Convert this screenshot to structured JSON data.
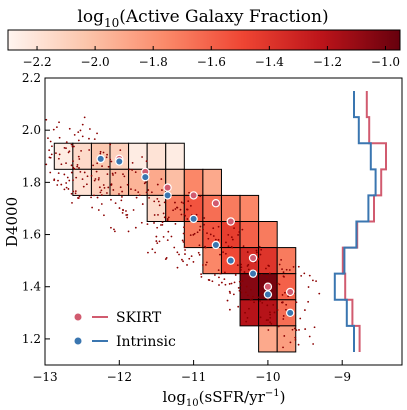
{
  "chart_data": {
    "type": "heatmap",
    "colorbar": {
      "title": "log$_{10}$(Active  Galaxy  Fraction)",
      "title_parts": {
        "prefix": "log",
        "sub": "10",
        "rest": "(Active  Galaxy  Fraction)"
      },
      "range": [
        -2.3,
        -0.95
      ],
      "ticks": [
        -2.2,
        -2.0,
        -1.8,
        -1.6,
        -1.4,
        -1.2,
        -1.0
      ],
      "tick_labels": [
        "−2.2",
        "−2.0",
        "−1.8",
        "−1.6",
        "−1.4",
        "−1.2",
        "−1.0"
      ],
      "colormap": "Reds"
    },
    "xlabel": {
      "prefix": "log",
      "sub": "10",
      "rest": "(sSFR/yr",
      "sup": "−1",
      "close": ")"
    },
    "ylabel": "D4000",
    "xlim": [
      -13,
      -8.2
    ],
    "ylim": [
      1.1,
      2.2
    ],
    "xticks": [
      -13,
      -12,
      -11,
      -10,
      -9
    ],
    "xtick_labels": [
      "−13",
      "−12",
      "−11",
      "−10",
      "−9"
    ],
    "yticks": [
      1.2,
      1.4,
      1.6,
      1.8,
      2.0,
      2.2
    ],
    "ytick_labels": [
      "1.2",
      "1.4",
      "1.6",
      "1.8",
      "2.0",
      "2.2"
    ],
    "bin_size": {
      "x": 0.25,
      "y": 0.1
    },
    "cells": [
      {
        "x": -12.75,
        "y": 1.9,
        "v": -2.25
      },
      {
        "x": -12.5,
        "y": 1.9,
        "v": -2.15
      },
      {
        "x": -12.25,
        "y": 1.9,
        "v": -2.05
      },
      {
        "x": -12.0,
        "y": 1.9,
        "v": -2.1
      },
      {
        "x": -11.75,
        "y": 1.9,
        "v": -2.25
      },
      {
        "x": -11.5,
        "y": 1.9,
        "v": -2.2
      },
      {
        "x": -11.25,
        "y": 1.9,
        "v": -2.25
      },
      {
        "x": -12.5,
        "y": 1.8,
        "v": -2.2
      },
      {
        "x": -12.25,
        "y": 1.8,
        "v": -2.1
      },
      {
        "x": -12.0,
        "y": 1.8,
        "v": -2.0
      },
      {
        "x": -11.75,
        "y": 1.8,
        "v": -1.95
      },
      {
        "x": -11.5,
        "y": 1.8,
        "v": -1.9
      },
      {
        "x": -11.25,
        "y": 1.8,
        "v": -2.0
      },
      {
        "x": -11.0,
        "y": 1.8,
        "v": -1.75
      },
      {
        "x": -10.75,
        "y": 1.8,
        "v": -1.9
      },
      {
        "x": -11.5,
        "y": 1.7,
        "v": -2.15
      },
      {
        "x": -11.25,
        "y": 1.7,
        "v": -1.7
      },
      {
        "x": -11.0,
        "y": 1.7,
        "v": -1.55
      },
      {
        "x": -10.75,
        "y": 1.7,
        "v": -1.65
      },
      {
        "x": -10.5,
        "y": 1.7,
        "v": -1.7
      },
      {
        "x": -10.25,
        "y": 1.7,
        "v": -1.75
      },
      {
        "x": -11.0,
        "y": 1.6,
        "v": -1.7
      },
      {
        "x": -10.75,
        "y": 1.6,
        "v": -1.55
      },
      {
        "x": -10.5,
        "y": 1.6,
        "v": -1.45
      },
      {
        "x": -10.25,
        "y": 1.6,
        "v": -1.6
      },
      {
        "x": -10.0,
        "y": 1.6,
        "v": -1.7
      },
      {
        "x": -10.75,
        "y": 1.5,
        "v": -1.75
      },
      {
        "x": -10.5,
        "y": 1.5,
        "v": -1.5
      },
      {
        "x": -10.25,
        "y": 1.5,
        "v": -1.35
      },
      {
        "x": -10.0,
        "y": 1.5,
        "v": -1.4
      },
      {
        "x": -9.75,
        "y": 1.5,
        "v": -1.7
      },
      {
        "x": -10.25,
        "y": 1.4,
        "v": -1.05
      },
      {
        "x": -10.0,
        "y": 1.4,
        "v": -1.0
      },
      {
        "x": -9.75,
        "y": 1.4,
        "v": -1.6
      },
      {
        "x": -10.25,
        "y": 1.3,
        "v": -1.2
      },
      {
        "x": -10.0,
        "y": 1.3,
        "v": -1.2
      },
      {
        "x": -9.75,
        "y": 1.3,
        "v": -1.65
      },
      {
        "x": -10.0,
        "y": 1.2,
        "v": -1.9
      },
      {
        "x": -9.75,
        "y": 1.2,
        "v": -1.85
      }
    ],
    "series": [
      {
        "name": "SKIRT",
        "color": "#d15b6f",
        "points": [
          [
            -12.25,
            1.89
          ],
          [
            -12.0,
            1.89
          ],
          [
            -11.65,
            1.84
          ],
          [
            -11.35,
            1.78
          ],
          [
            -11.0,
            1.75
          ],
          [
            -10.7,
            1.72
          ],
          [
            -10.5,
            1.65
          ],
          [
            -10.2,
            1.51
          ],
          [
            -10.0,
            1.4
          ],
          [
            -9.7,
            1.38
          ]
        ]
      },
      {
        "name": "Intrinsic",
        "color": "#3a76b0",
        "points": [
          [
            -12.25,
            1.89
          ],
          [
            -12.0,
            1.88
          ],
          [
            -11.65,
            1.82
          ],
          [
            -11.35,
            1.75
          ],
          [
            -11.0,
            1.66
          ],
          [
            -10.7,
            1.56
          ],
          [
            -10.5,
            1.5
          ],
          [
            -10.2,
            1.45
          ],
          [
            -10.0,
            1.37
          ],
          [
            -9.7,
            1.3
          ]
        ]
      }
    ],
    "marginals": {
      "SKIRT": {
        "color": "#d15b6f",
        "edges_y": [
          1.15,
          1.25,
          1.35,
          1.45,
          1.55,
          1.65,
          1.75,
          1.85,
          1.95,
          2.05,
          2.15
        ],
        "values": [
          0.45,
          0.3,
          0.15,
          0.1,
          0.4,
          0.75,
          0.9,
          1.0,
          0.65,
          0.6
        ]
      },
      "Intrinsic": {
        "color": "#3a76b0",
        "edges_y": [
          1.15,
          1.25,
          1.35,
          1.45,
          1.55,
          1.65,
          1.75,
          1.85,
          1.95,
          2.05,
          2.15
        ],
        "values": [
          0.5,
          0.35,
          0.1,
          0.3,
          0.55,
          0.8,
          0.95,
          0.85,
          0.6,
          0.5
        ]
      }
    },
    "legend": {
      "position": "lower-left",
      "entries": [
        "SKIRT",
        "Intrinsic"
      ]
    }
  }
}
